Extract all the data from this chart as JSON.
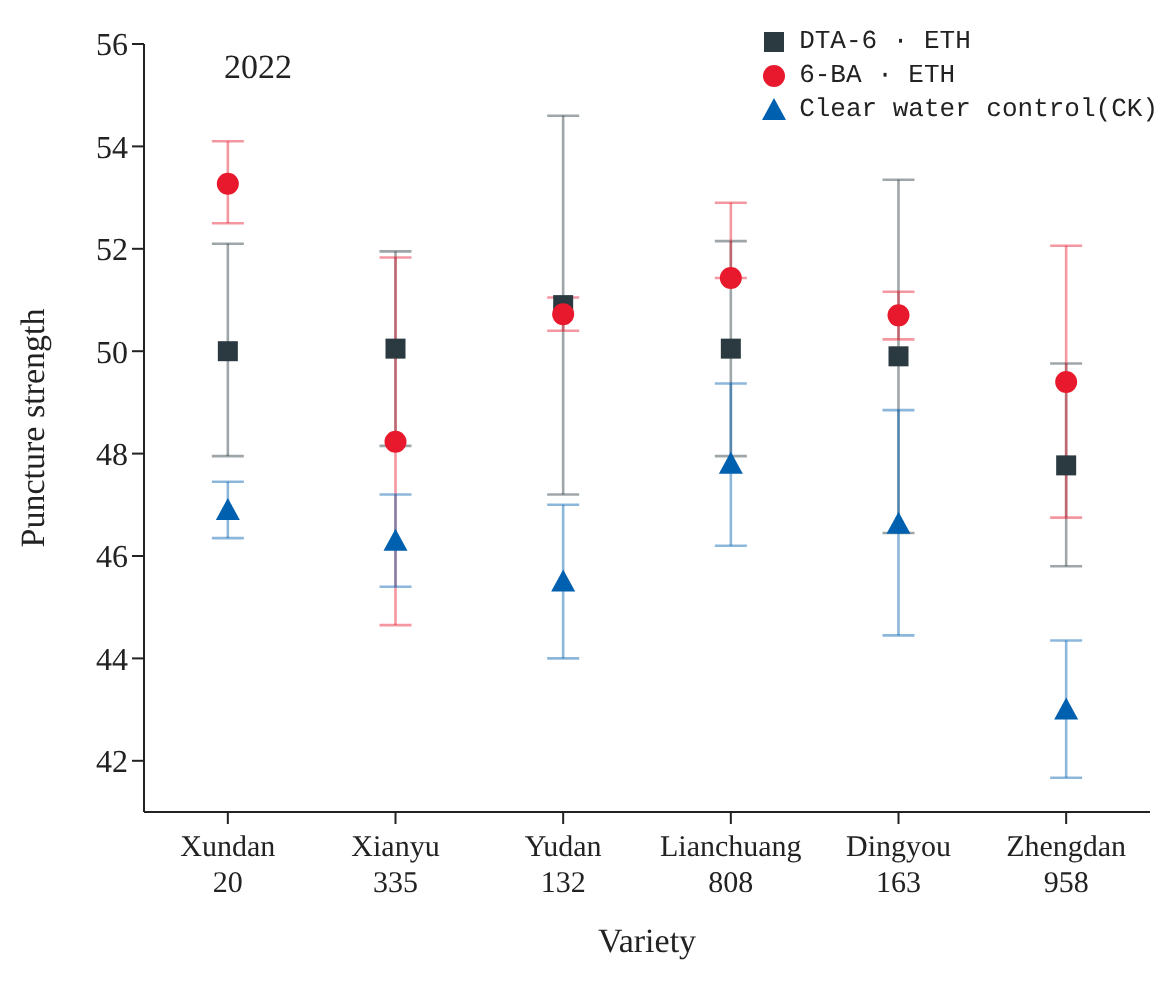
{
  "chart_data": {
    "type": "scatter",
    "xlabel": "Variety",
    "ylabel": "Puncture strength",
    "annotations": [
      "2022"
    ],
    "categories": [
      "Xundan 20",
      "Xianyu 335",
      "Yudan 132",
      "Lianchuang 808",
      "Dingyou 163",
      "Zhengdan 958"
    ],
    "ylim": [
      41,
      56
    ],
    "yticks": [
      42,
      44,
      46,
      48,
      50,
      52,
      54,
      56
    ],
    "grid": false,
    "legend": "top right",
    "series": [
      {
        "name": "DTA-6 · ETH",
        "color": "#2b3a40",
        "marker": "square",
        "values": [
          50.0,
          50.05,
          50.9,
          50.05,
          49.9,
          47.77
        ],
        "errors": [
          [
            47.95,
            52.1
          ],
          [
            48.15,
            51.95
          ],
          [
            47.2,
            54.6
          ],
          [
            47.95,
            52.15
          ],
          [
            46.45,
            53.35
          ],
          [
            45.8,
            49.76
          ]
        ]
      },
      {
        "name": "6-BA · ETH",
        "color": "#e8192c",
        "marker": "circle",
        "values": [
          53.27,
          48.23,
          50.72,
          51.43,
          50.7,
          49.4
        ],
        "errors": [
          [
            52.5,
            54.1
          ],
          [
            44.65,
            51.83
          ],
          [
            50.4,
            51.05
          ],
          [
            51.43,
            52.9
          ],
          [
            50.23,
            51.16
          ],
          [
            46.75,
            52.06
          ]
        ]
      },
      {
        "name": "Clear water control(CK)",
        "color": "#0060b0",
        "marker": "triangle",
        "values": [
          46.9,
          46.3,
          45.5,
          47.8,
          46.63,
          43.0
        ],
        "errors": [
          [
            46.35,
            47.45
          ],
          [
            45.4,
            47.2
          ],
          [
            44.0,
            47.0
          ],
          [
            46.2,
            49.37
          ],
          [
            44.45,
            48.85
          ],
          [
            41.67,
            44.35
          ]
        ]
      }
    ]
  }
}
